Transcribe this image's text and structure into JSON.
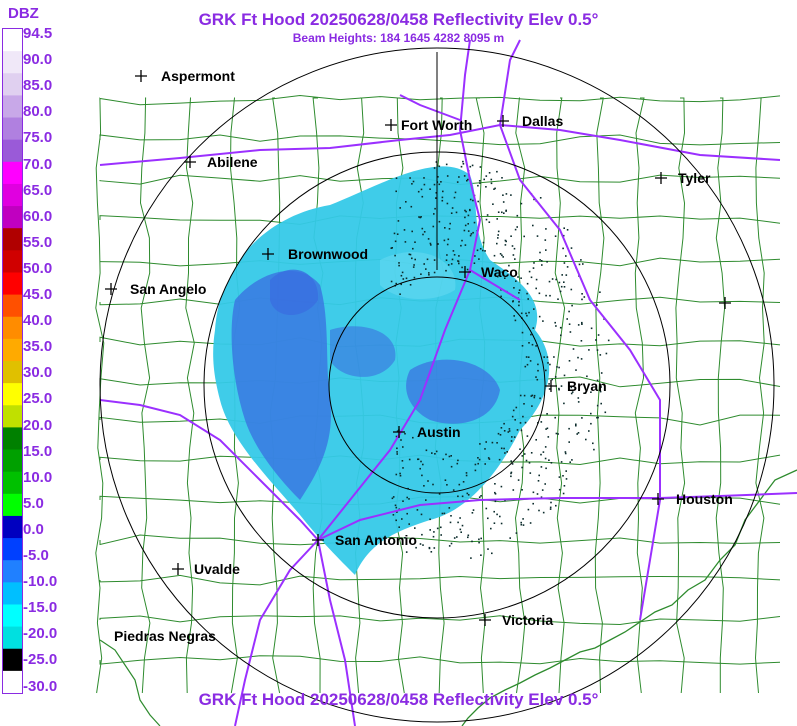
{
  "header": {
    "title": "GRK Ft Hood 20250628/0458 Reflectivity Elev 0.5°",
    "beam_heights": "Beam Heights: 184 1645 4282 8095 m"
  },
  "footer": {
    "title": "GRK Ft Hood 20250628/0458 Reflectivity Elev 0.5°"
  },
  "scale": {
    "unit": "DBZ",
    "labels": [
      "94.5",
      "90.0",
      "85.0",
      "80.0",
      "75.0",
      "70.0",
      "65.0",
      "60.0",
      "55.0",
      "50.0",
      "45.0",
      "40.0",
      "35.0",
      "30.0",
      "25.0",
      "20.0",
      "15.0",
      "10.0",
      "5.0",
      "0.0",
      "-5.0",
      "-10.0",
      "-15.0",
      "-20.0",
      "-25.0",
      "-30.0"
    ],
    "colors": [
      "#ffffff",
      "#f0e8f8",
      "#e0d0f0",
      "#c8a8e8",
      "#b080e0",
      "#9a5ad8",
      "#ff00ff",
      "#e000e0",
      "#c000c0",
      "#b00000",
      "#d00000",
      "#ff0000",
      "#ff5000",
      "#ff8c00",
      "#ffaa00",
      "#e0c000",
      "#ffff00",
      "#c0e000",
      "#008000",
      "#00a000",
      "#00c000",
      "#00ff00",
      "#0000c0",
      "#0040ff",
      "#2080ff",
      "#00bfff",
      "#00ffff",
      "#00e0e0",
      "#000000",
      "#ffffff"
    ]
  },
  "cities": [
    {
      "name": "Aspermont"
    },
    {
      "name": "Abilene"
    },
    {
      "name": "Fort Worth"
    },
    {
      "name": "Dallas"
    },
    {
      "name": "Tyler"
    },
    {
      "name": "Brownwood"
    },
    {
      "name": "Waco"
    },
    {
      "name": "San Angelo"
    },
    {
      "name": "Bryan"
    },
    {
      "name": "Austin"
    },
    {
      "name": "Houston"
    },
    {
      "name": "San Antonio"
    },
    {
      "name": "Uvalde"
    },
    {
      "name": "Victoria"
    },
    {
      "name": "Piedras Negras"
    },
    {
      "name": ""
    }
  ],
  "colors": {
    "title": "#8a2be2",
    "counties": "#2e8b2e",
    "highways": "#9b30ff",
    "range_rings": "#000000",
    "echo_blue": "#3a6ee0",
    "echo_cyan": "#35c9e8"
  }
}
